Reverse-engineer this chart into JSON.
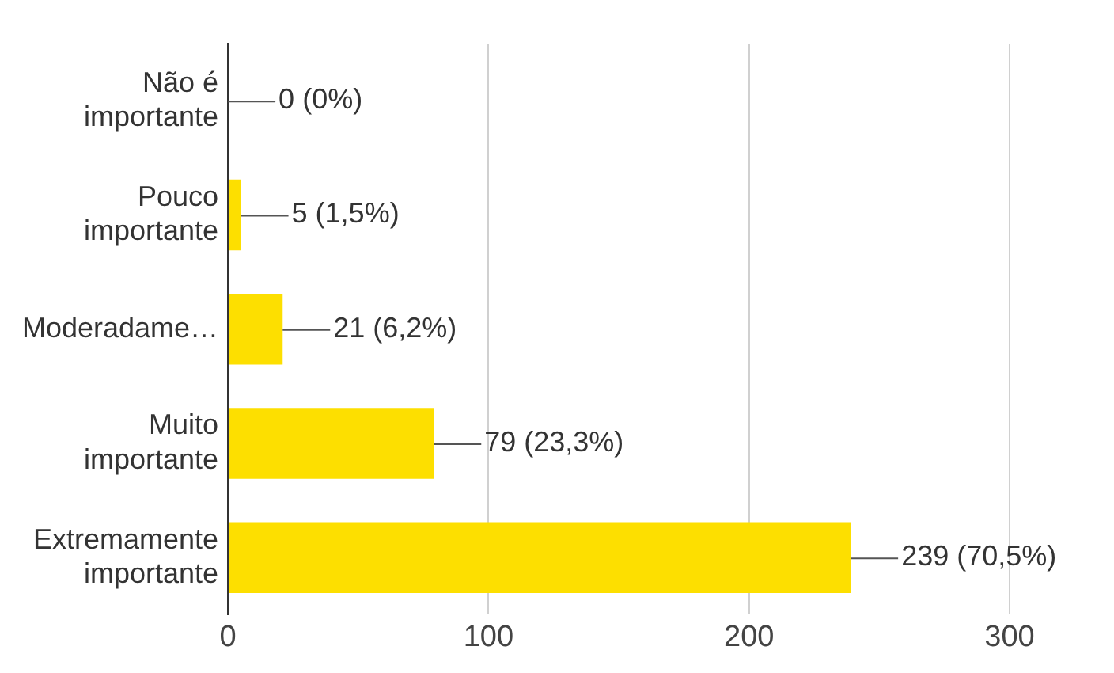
{
  "chart_data": {
    "type": "bar",
    "orientation": "horizontal",
    "categories": [
      "Não é importante",
      "Pouco importante",
      "Moderadame…",
      "Muito importante",
      "Extremamente importante"
    ],
    "values": [
      0,
      5,
      21,
      79,
      239
    ],
    "value_labels": [
      "0 (0%)",
      "5 (1,5%)",
      "21 (6,2%)",
      "79 (23,3%)",
      "239 (70,5%)"
    ],
    "color": "#fddf00",
    "xlim": [
      0,
      300
    ],
    "xticks": [
      0,
      100,
      200,
      300
    ],
    "grid": "x",
    "legend": false
  }
}
